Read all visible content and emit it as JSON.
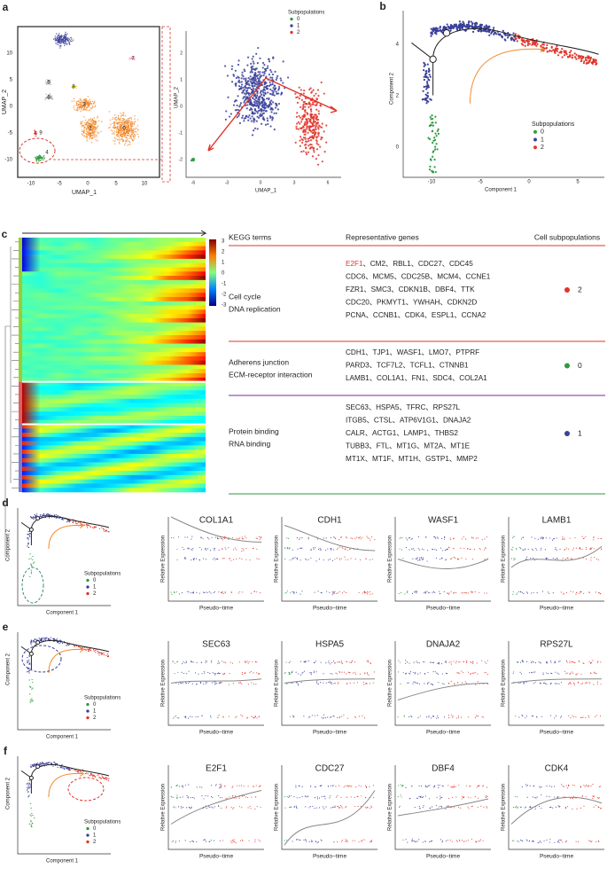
{
  "panels": {
    "a": {
      "label": "a",
      "umap": {
        "xlabel": "UMAP_1",
        "ylabel": "UMAP_2",
        "xticks": [
          "-10",
          "-5",
          "0",
          "5",
          "10"
        ],
        "yticks": [
          "10",
          "5",
          "0",
          "-5",
          "-10"
        ],
        "clusters": [
          "0",
          "1",
          "2",
          "3",
          "4",
          "5",
          "6",
          "7",
          "8",
          "9"
        ]
      },
      "sub": {
        "xlabel": "UMAP_1",
        "ylabel": "UMAP_2",
        "xticks": [
          "-6",
          "-3",
          "0",
          "3",
          "6"
        ],
        "yticks": [
          "2",
          "1",
          "0",
          "-1",
          "-2"
        ],
        "legend_title": "Subpopulations",
        "legend": [
          "0",
          "1",
          "2"
        ]
      }
    },
    "b": {
      "label": "b",
      "xlabel": "Component 1",
      "ylabel": "Component 2",
      "xticks": [
        "-10",
        "-5",
        "0",
        "5"
      ],
      "yticks": [
        "4",
        "2",
        "0"
      ],
      "legend_title": "Subpopulations",
      "legend": [
        "0",
        "1",
        "2"
      ]
    },
    "c": {
      "label": "c",
      "colorbar_ticks": [
        "3",
        "2",
        "1",
        "0",
        "-1",
        "-2",
        "-3"
      ],
      "headers": [
        "KEGG terms",
        "Representative genes",
        "Cell subpopulations"
      ],
      "rows": [
        {
          "terms": [
            "Cell cycle",
            "DNA replication"
          ],
          "highlight": "E2F1",
          "genes": [
            "、CM2、RBL1、CDC27、CDC45",
            "CDC6、MCM5、CDC25B、MCM4、CCNE1",
            "FZR1、SMC3、CDKN1B、DBF4、TTK",
            "CDC20、PKMYT1、YWHAH、CDKN2D",
            "PCNA、CCNB1、CDK4、ESPL1、CCNA2"
          ],
          "subpopulation": "2"
        },
        {
          "terms": [
            "Adherens junction",
            "ECM-receptor interaction"
          ],
          "genes": [
            "CDH1、TJP1、WASF1、LMO7、PTPRF",
            "PARD3、TCF7L2、TCFL1、CTNNB1",
            "LAMB1、COL1A1、FN1、SDC4、COL2A1"
          ],
          "subpopulation": "0"
        },
        {
          "terms": [
            "Protein binding",
            "RNA binding"
          ],
          "genes": [
            "SEC63、HSPA5、TFRC、RPS27L",
            "ITGB5、CTSL、ATP6V1G1、DNAJA2",
            "CALR、ACTG1、LAMP1、THBS2",
            "TUBB3、FTL、MT1G、MT2A、MT1E",
            "MT1X、MT1F、MT1H、GSTP1、MMP2"
          ],
          "subpopulation": "1"
        }
      ]
    },
    "rows": [
      {
        "label": "d",
        "xlabel": "Component 1",
        "ylabel": "Component 2",
        "legend_title": "Subpopulations",
        "legend": [
          "0",
          "1",
          "2"
        ],
        "genes": [
          "COL1A1",
          "CDH1",
          "WASF1",
          "LAMB1"
        ],
        "gene_ylabel": "Relative Expression",
        "gene_xlabel": "Pseudo−time"
      },
      {
        "label": "e",
        "xlabel": "Component 1",
        "ylabel": "Component 2",
        "legend_title": "Subpopulations",
        "legend": [
          "0",
          "1",
          "2"
        ],
        "genes": [
          "SEC63",
          "HSPA5",
          "DNAJA2",
          "RPS27L"
        ],
        "gene_ylabel": "Relative Expression",
        "gene_xlabel": "Pseudo−time"
      },
      {
        "label": "f",
        "xlabel": "Component 1",
        "ylabel": "Component 2",
        "legend_title": "Subpopulations",
        "legend": [
          "0",
          "1",
          "2"
        ],
        "genes": [
          "E2F1",
          "CDC27",
          "DBF4",
          "CDK4"
        ],
        "gene_ylabel": "Relative Expression",
        "gene_xlabel": "Pseudo−time"
      }
    ]
  }
}
